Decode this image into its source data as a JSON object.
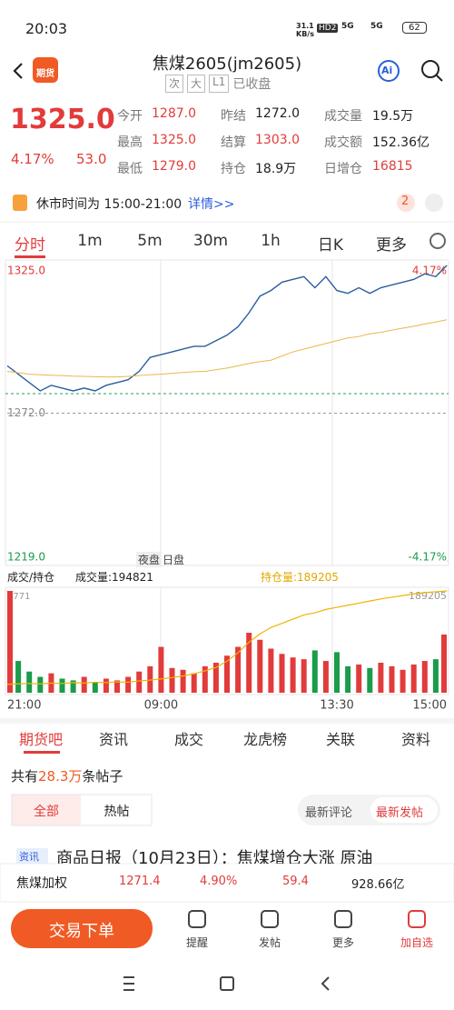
{
  "status": {
    "time": "20:03",
    "net_speed": "31.1",
    "net_unit": "KB/s",
    "hd": "HD2",
    "net1": "5G",
    "net2": "5G",
    "battery": "62"
  },
  "header": {
    "logo": "期货",
    "title": "焦煤2605(jm2605)",
    "tags": [
      "次",
      "大",
      "L1"
    ],
    "state": "已收盘",
    "ai": "Ai"
  },
  "quote": {
    "price": "1325.0",
    "change_pct": "4.17%",
    "change": "53.0",
    "fields": [
      [
        "今开",
        "1287.0"
      ],
      [
        "昨结",
        "1272.0"
      ],
      [
        "成交量",
        "19.5万"
      ],
      [
        "最高",
        "1325.0"
      ],
      [
        "结算",
        "1303.0"
      ],
      [
        "成交额",
        "152.36亿"
      ],
      [
        "最低",
        "1279.0"
      ],
      [
        "持仓",
        "18.9万"
      ],
      [
        "日增仓",
        "16815"
      ]
    ]
  },
  "notice": {
    "text": "休市时间为 15:00-21:00",
    "link": "详情>>",
    "badge": "2"
  },
  "period_tabs": [
    "分时",
    "1m",
    "5m",
    "30m",
    "1h",
    "日K",
    "更多"
  ],
  "session_labels": [
    "夜盘",
    "日盘"
  ],
  "volume_header": {
    "selector": "成交/持仓",
    "volume": "成交量:194821",
    "oi": "持仓量:189205"
  },
  "chart_data": [
    {
      "type": "line",
      "ylim": [
        1219,
        1325
      ],
      "yticks": [
        {
          "value": 1325,
          "label": "1325.0"
        },
        {
          "value": 1272,
          "label": "1272.0"
        },
        {
          "value": 1219,
          "label": "1219.0"
        }
      ],
      "y2lim": [
        -4.17,
        4.17
      ],
      "y2ticks": [
        {
          "value": 4.17,
          "label": "4.17%"
        },
        {
          "value": -4.17,
          "label": "-4.17%"
        }
      ],
      "series": [
        {
          "color": "#2c5f9e",
          "values": [
            1289,
            1286,
            1283,
            1280,
            1282,
            1281,
            1280,
            1281,
            1280,
            1282,
            1283,
            1284,
            1287,
            1292,
            1293,
            1294,
            1295,
            1296,
            1296,
            1298,
            1300,
            1303,
            1308,
            1314,
            1316,
            1319,
            1320,
            1321,
            1317,
            1321,
            1316,
            1315,
            1317,
            1315,
            1317,
            1318,
            1319,
            1320,
            1322,
            1321,
            1325
          ]
        },
        {
          "color": "#e8b84a",
          "values": [
            1287,
            1286.5,
            1286,
            1285.8,
            1285.6,
            1285.5,
            1285.3,
            1285.2,
            1285.1,
            1285,
            1285,
            1285.2,
            1285.5,
            1285.8,
            1286,
            1286.3,
            1286.6,
            1286.9,
            1287,
            1287.6,
            1288.2,
            1289,
            1289.8,
            1290.5,
            1291,
            1292.5,
            1294,
            1295,
            1296,
            1297,
            1298,
            1299,
            1299.5,
            1300.5,
            1301,
            1301.8,
            1302.5,
            1303.2,
            1304,
            1304.7,
            1305.5
          ]
        }
      ]
    },
    {
      "type": "bar",
      "categories": [
        "21:00",
        null,
        null,
        null,
        null,
        null,
        null,
        null,
        null,
        null,
        null,
        null,
        null,
        null,
        "09:00",
        null,
        null,
        null,
        null,
        null,
        null,
        null,
        null,
        null,
        null,
        null,
        null,
        null,
        null,
        null,
        "13:30",
        null,
        null,
        null,
        null,
        null,
        null,
        null,
        null,
        null,
        "15:00"
      ],
      "ylim": [
        0,
        5771
      ],
      "yticks": [
        5771
      ],
      "y2lim": [
        165000,
        189205
      ],
      "y2ticks": [
        189205
      ],
      "up_color": "#e23b3b",
      "down_color": "#1a9c4a",
      "series": [
        {
          "values": [
            5771,
            1800,
            1200,
            900,
            1100,
            800,
            700,
            900,
            600,
            800,
            700,
            900,
            1200,
            1500,
            2600,
            1400,
            1300,
            1100,
            1500,
            1700,
            2100,
            2600,
            3400,
            3000,
            2500,
            2200,
            2000,
            1900,
            2400,
            1800,
            2300,
            1500,
            1600,
            1400,
            1700,
            1500,
            1300,
            1600,
            1800,
            1900,
            3300
          ]
        },
        {
          "axis": "y2",
          "color": "#f0b400",
          "values": [
            167000,
            167100,
            167200,
            167100,
            167300,
            167200,
            167400,
            167300,
            167500,
            167400,
            167600,
            167500,
            167800,
            168000,
            168300,
            168600,
            169000,
            169500,
            170200,
            171000,
            172500,
            174500,
            177000,
            179000,
            180500,
            181500,
            182500,
            183500,
            184000,
            184800,
            185300,
            185800,
            186300,
            186800,
            187300,
            187700,
            188100,
            188500,
            188800,
            189000,
            189205
          ]
        }
      ]
    }
  ],
  "content_tabs": [
    "期货吧",
    "资讯",
    "成交",
    "龙虎榜",
    "关联",
    "资料"
  ],
  "posts": {
    "prefix": "共有",
    "count": "28.3万",
    "suffix": "条帖子",
    "filters": [
      "全部",
      "热帖"
    ],
    "sorts": [
      "最新评论",
      "最新发帖"
    ],
    "news_tag": "资讯",
    "headline": "商品日报（10月23日）：焦煤增仓大涨 原油"
  },
  "ticker": [
    "焦煤加权",
    "1271.4",
    "4.90%",
    "59.4",
    "928.66亿"
  ],
  "actions": {
    "trade": "交易下单",
    "nav": [
      "提醒",
      "发帖",
      "更多",
      "加自选"
    ]
  }
}
